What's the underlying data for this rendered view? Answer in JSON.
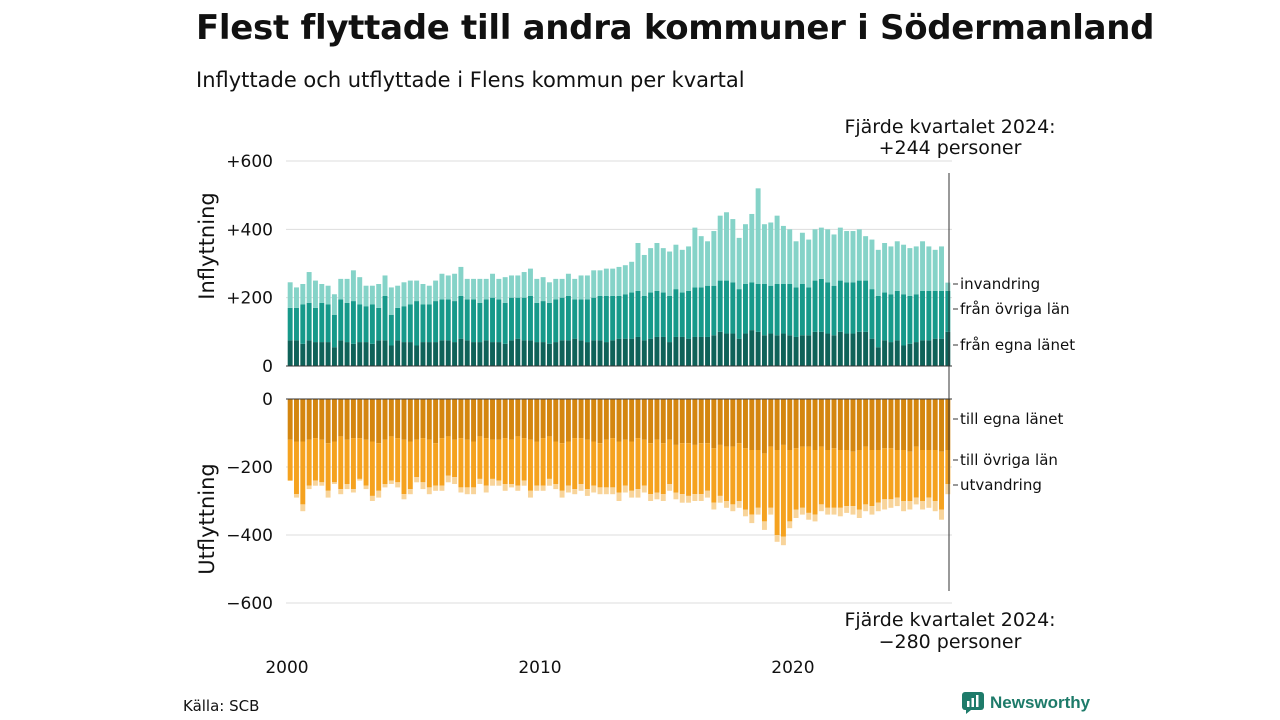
{
  "title": "Flest flyttade till andra kommuner i Södermanland",
  "subtitle": "Inflyttade och utflyttade i Flens kommun per kvartal",
  "source": "Källa: SCB",
  "brand": "Newsworthy",
  "colors": {
    "in_egna": "#0f6259",
    "in_ovriga": "#17998a",
    "in_invandring": "#85d3c8",
    "out_egna": "#d4860f",
    "out_ovriga": "#f5a21f",
    "out_utvandring": "#f8d49a",
    "brand": "#1e7b6a"
  },
  "chart_data": {
    "type": "bar",
    "stacked": true,
    "diverging": true,
    "x_start": "2000 Q1",
    "x_end": "2024 Q4",
    "x_ticks": [
      "2000",
      "2010",
      "2020"
    ],
    "top_panel": {
      "ylabel": "Inflyttning",
      "yticks": [
        "+600",
        "+400",
        "+200",
        "0"
      ],
      "ylim": [
        0,
        600
      ],
      "series": [
        {
          "name": "från egna länet",
          "values": [
            75,
            75,
            65,
            75,
            70,
            70,
            70,
            55,
            75,
            70,
            65,
            70,
            70,
            65,
            75,
            75,
            60,
            75,
            70,
            70,
            60,
            70,
            70,
            70,
            75,
            75,
            70,
            80,
            75,
            70,
            70,
            75,
            70,
            70,
            65,
            75,
            80,
            75,
            75,
            70,
            70,
            65,
            70,
            75,
            75,
            80,
            75,
            70,
            75,
            75,
            70,
            75,
            80,
            80,
            80,
            85,
            75,
            80,
            85,
            85,
            70,
            85,
            85,
            80,
            85,
            85,
            85,
            90,
            100,
            95,
            95,
            80,
            95,
            105,
            100,
            90,
            95,
            90,
            95,
            90,
            85,
            90,
            90,
            100,
            100,
            95,
            90,
            100,
            95,
            95,
            100,
            100,
            80,
            55,
            75,
            70,
            75,
            60,
            65,
            70,
            75,
            75,
            80,
            80,
            100
          ]
        },
        {
          "name": "från övriga län",
          "values": [
            95,
            95,
            115,
            110,
            100,
            115,
            110,
            95,
            120,
            115,
            125,
            110,
            105,
            115,
            95,
            130,
            90,
            95,
            105,
            110,
            130,
            110,
            110,
            120,
            120,
            120,
            120,
            125,
            120,
            125,
            115,
            120,
            130,
            125,
            120,
            125,
            120,
            125,
            130,
            115,
            120,
            120,
            125,
            125,
            130,
            115,
            120,
            125,
            125,
            130,
            135,
            130,
            125,
            130,
            135,
            135,
            130,
            135,
            135,
            130,
            135,
            140,
            130,
            140,
            145,
            145,
            150,
            145,
            150,
            155,
            150,
            145,
            145,
            140,
            140,
            150,
            140,
            150,
            145,
            150,
            145,
            150,
            140,
            150,
            155,
            150,
            145,
            150,
            150,
            150,
            150,
            150,
            145,
            150,
            140,
            140,
            145,
            150,
            140,
            140,
            145,
            145,
            140,
            140,
            120
          ]
        },
        {
          "name": "invandring",
          "values": [
            75,
            60,
            60,
            90,
            80,
            55,
            55,
            60,
            60,
            70,
            90,
            80,
            60,
            55,
            70,
            60,
            80,
            65,
            70,
            70,
            60,
            60,
            55,
            60,
            75,
            70,
            80,
            85,
            60,
            60,
            70,
            60,
            70,
            60,
            75,
            65,
            65,
            75,
            80,
            70,
            70,
            60,
            60,
            55,
            65,
            60,
            70,
            70,
            80,
            75,
            80,
            80,
            85,
            85,
            90,
            140,
            120,
            130,
            140,
            130,
            130,
            130,
            125,
            130,
            175,
            150,
            130,
            160,
            190,
            200,
            185,
            150,
            175,
            200,
            280,
            175,
            185,
            200,
            170,
            160,
            135,
            150,
            140,
            150,
            150,
            155,
            150,
            155,
            150,
            150,
            150,
            130,
            145,
            135,
            145,
            140,
            145,
            145,
            140,
            140,
            145,
            130,
            120,
            130,
            24
          ]
        }
      ]
    },
    "bottom_panel": {
      "ylabel": "Utflyttning",
      "yticks": [
        "0",
        "−200",
        "−400",
        "−600"
      ],
      "ylim": [
        -600,
        0
      ],
      "series": [
        {
          "name": "till egna länet",
          "values": [
            -120,
            -125,
            -125,
            -120,
            -115,
            -120,
            -130,
            -125,
            -110,
            -120,
            -115,
            -115,
            -120,
            -125,
            -130,
            -120,
            -110,
            -115,
            -120,
            -125,
            -120,
            -115,
            -120,
            -130,
            -115,
            -110,
            -120,
            -115,
            -120,
            -125,
            -110,
            -115,
            -120,
            -120,
            -115,
            -120,
            -110,
            -115,
            -120,
            -125,
            -115,
            -110,
            -125,
            -130,
            -125,
            -115,
            -115,
            -120,
            -125,
            -130,
            -120,
            -115,
            -125,
            -120,
            -125,
            -115,
            -120,
            -130,
            -120,
            -130,
            -120,
            -135,
            -130,
            -130,
            -135,
            -130,
            -130,
            -145,
            -135,
            -140,
            -140,
            -130,
            -145,
            -150,
            -150,
            -160,
            -140,
            -150,
            -135,
            -150,
            -145,
            -140,
            -140,
            -150,
            -140,
            -150,
            -145,
            -150,
            -150,
            -155,
            -150,
            -140,
            -150,
            -150,
            -145,
            -145,
            -150,
            -150,
            -155,
            -140,
            -150,
            -150,
            -150,
            -155,
            -150
          ]
        },
        {
          "name": "till övriga län",
          "values": [
            -120,
            -155,
            -185,
            -135,
            -125,
            -125,
            -140,
            -120,
            -155,
            -130,
            -150,
            -120,
            -135,
            -160,
            -140,
            -130,
            -130,
            -130,
            -160,
            -140,
            -110,
            -130,
            -140,
            -125,
            -140,
            -115,
            -110,
            -145,
            -140,
            -135,
            -125,
            -140,
            -115,
            -120,
            -135,
            -130,
            -145,
            -125,
            -150,
            -130,
            -140,
            -125,
            -125,
            -140,
            -130,
            -150,
            -135,
            -145,
            -130,
            -130,
            -140,
            -145,
            -150,
            -135,
            -145,
            -150,
            -135,
            -150,
            -155,
            -150,
            -130,
            -140,
            -150,
            -155,
            -145,
            -150,
            -140,
            -160,
            -150,
            -160,
            -170,
            -170,
            -180,
            -190,
            -170,
            -200,
            -180,
            -250,
            -270,
            -210,
            -180,
            -180,
            -195,
            -190,
            -170,
            -170,
            -175,
            -170,
            -165,
            -160,
            -175,
            -170,
            -165,
            -155,
            -150,
            -150,
            -140,
            -150,
            -145,
            -150,
            -150,
            -140,
            -150,
            -170,
            -100
          ]
        },
        {
          "name": "utvandring",
          "values": [
            0,
            -10,
            -20,
            -10,
            -15,
            -10,
            -20,
            -5,
            -15,
            -15,
            -10,
            -5,
            -10,
            -15,
            -20,
            -10,
            -10,
            -15,
            -15,
            -15,
            -15,
            -20,
            -20,
            -15,
            -15,
            -20,
            -20,
            -15,
            -20,
            -20,
            -15,
            -20,
            -20,
            -15,
            -20,
            -10,
            -15,
            -15,
            -20,
            -15,
            -15,
            -20,
            -15,
            -20,
            -20,
            -15,
            -20,
            -20,
            -20,
            -20,
            -20,
            -20,
            -25,
            -20,
            -20,
            -25,
            -20,
            -20,
            -20,
            -20,
            -20,
            -20,
            -25,
            -20,
            -20,
            -20,
            -20,
            -20,
            -20,
            -20,
            -20,
            -20,
            -20,
            -25,
            -20,
            -25,
            -20,
            -20,
            -25,
            -20,
            -25,
            -20,
            -20,
            -20,
            -20,
            -20,
            -20,
            -25,
            -20,
            -25,
            -25,
            -20,
            -25,
            -25,
            -30,
            -25,
            -25,
            -30,
            -25,
            -20,
            -25,
            -30,
            -30,
            -30,
            -30
          ]
        }
      ]
    },
    "annotation_top": {
      "line1": "Fjärde kvartalet 2024:",
      "line2": "+244 personer"
    },
    "annotation_bottom": {
      "line1": "Fjärde kvartalet 2024:",
      "line2": "−280 personer"
    },
    "legend_top": [
      "invandring",
      "från övriga län",
      "från egna länet"
    ],
    "legend_bottom": [
      "till egna länet",
      "till övriga län",
      "utvandring"
    ]
  }
}
